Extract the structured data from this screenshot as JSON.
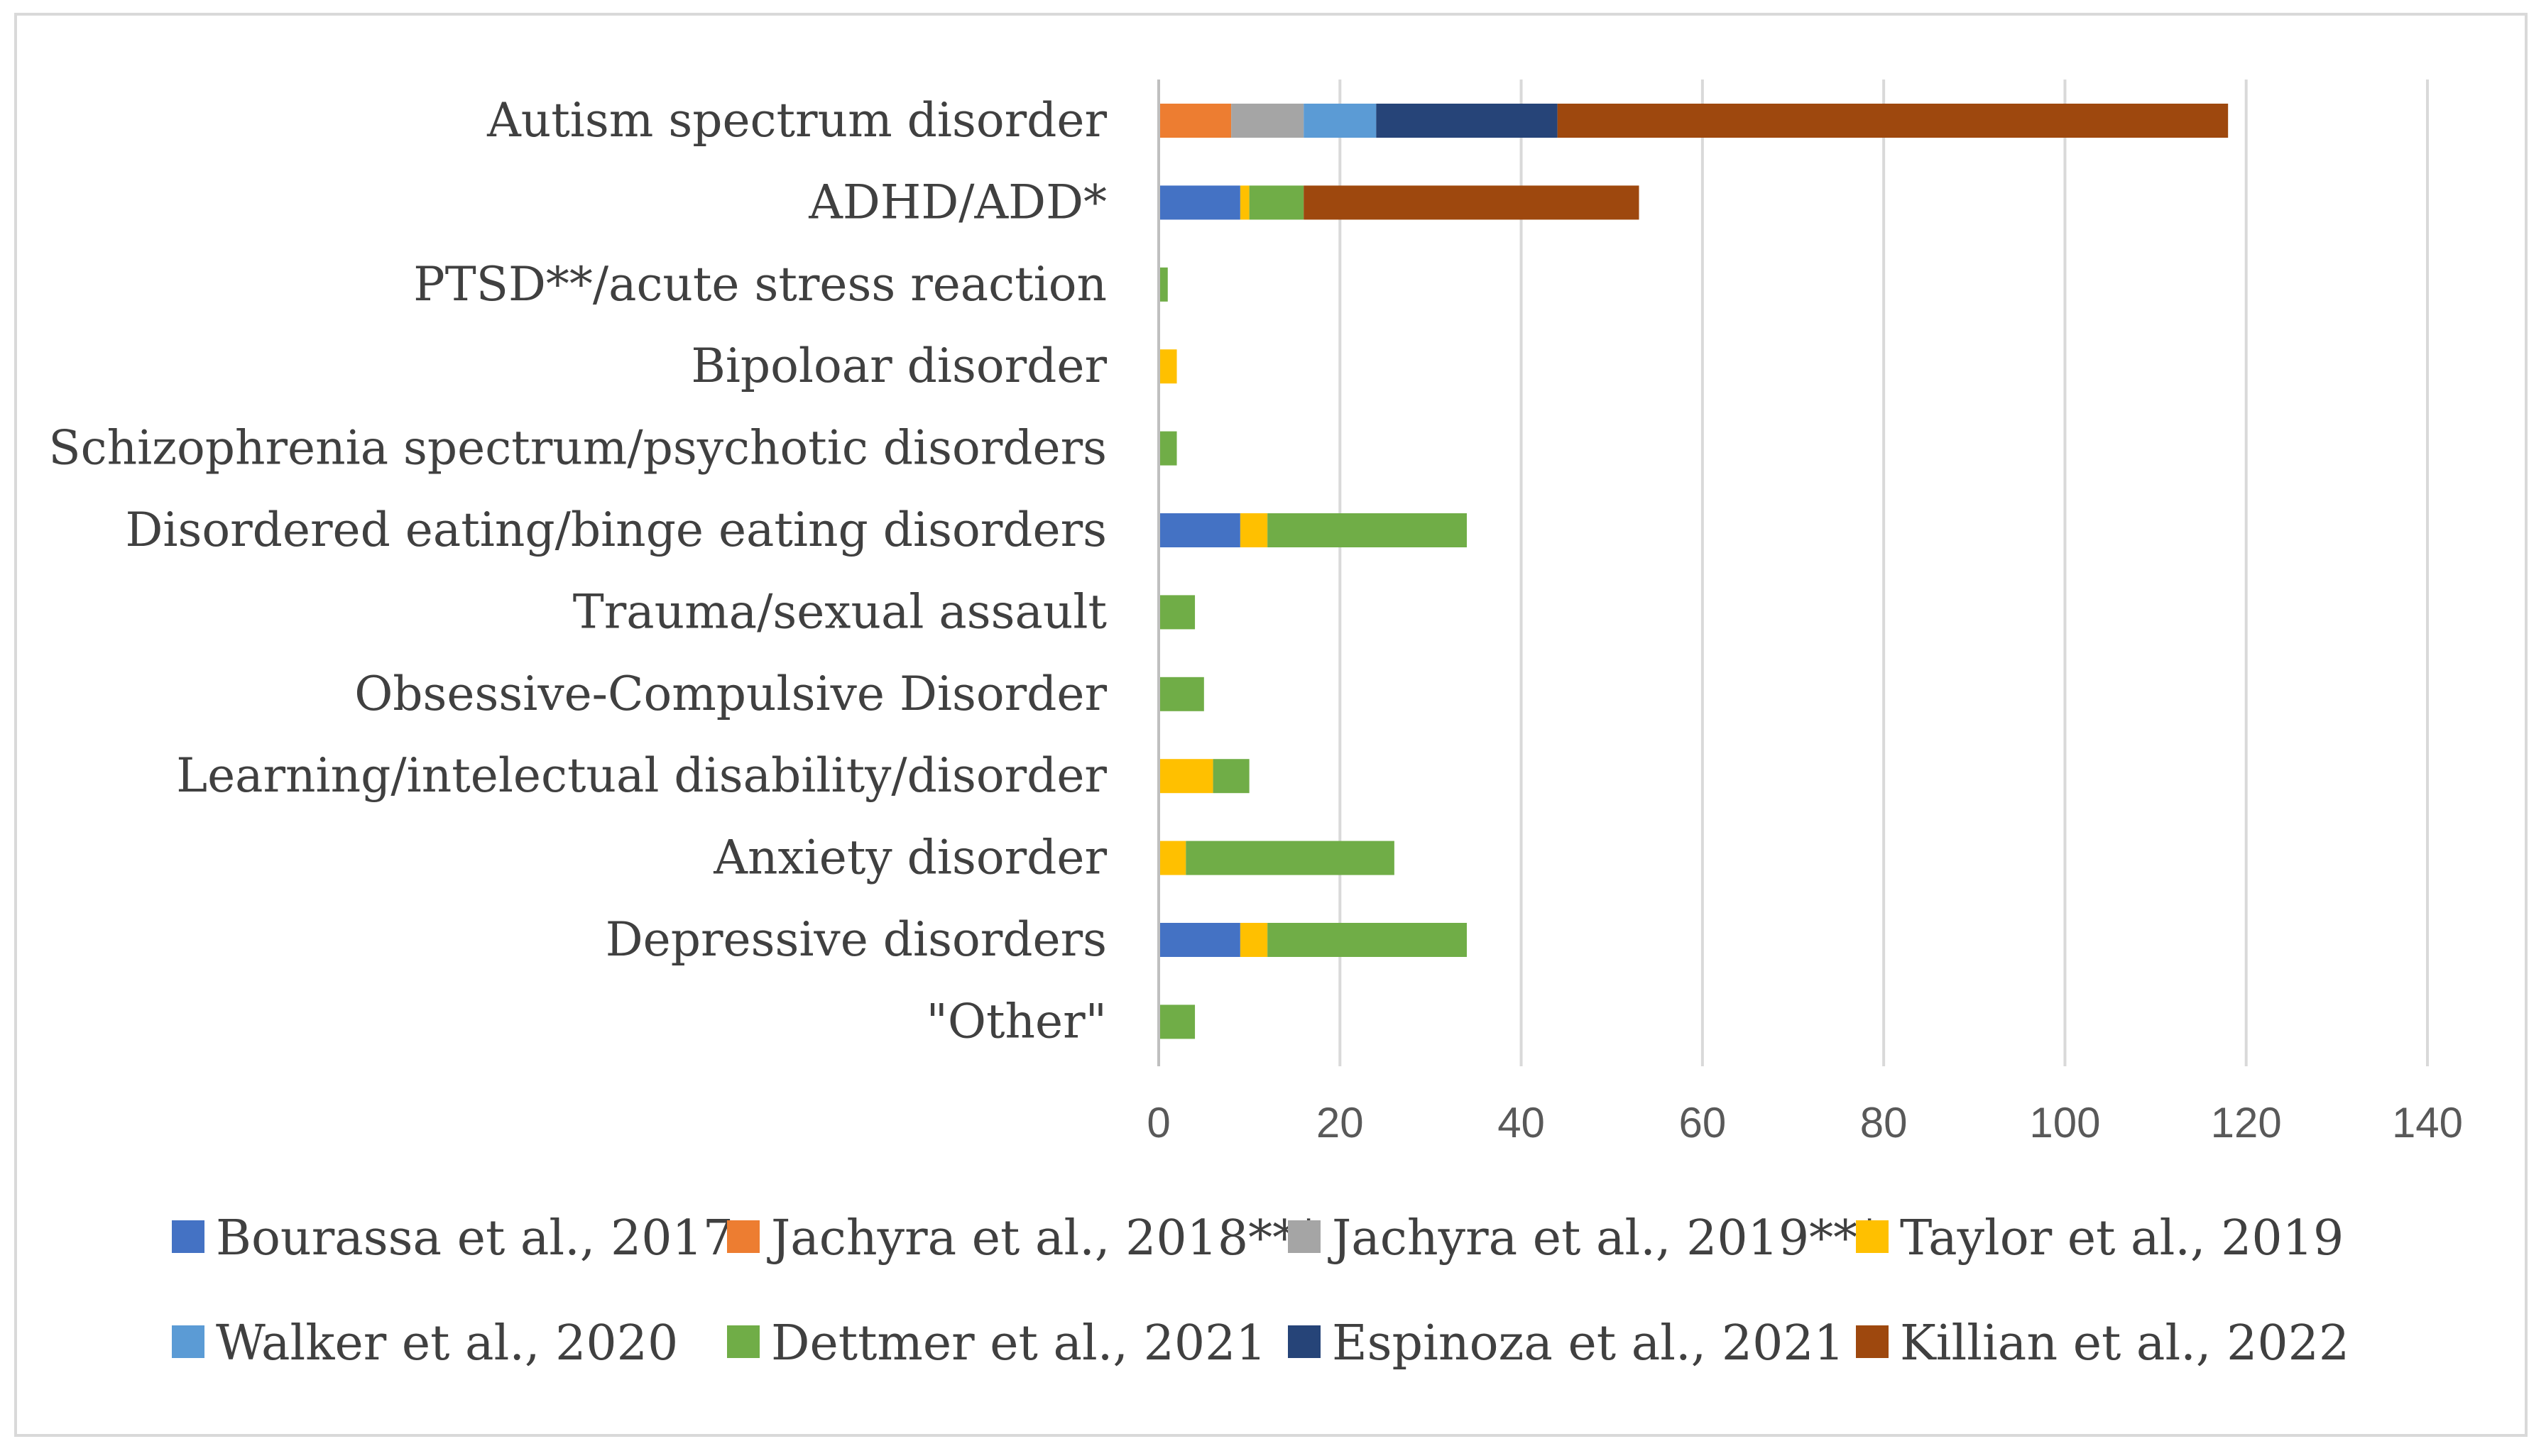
{
  "chart_data": {
    "type": "bar",
    "orientation": "horizontal",
    "stacked": true,
    "title": "",
    "xlabel": "",
    "ylabel": "",
    "xlim": [
      0,
      140
    ],
    "xticks": [
      0,
      20,
      40,
      60,
      80,
      100,
      120,
      140
    ],
    "grid": true,
    "legend_position": "bottom",
    "categories": [
      "Autism spectrum disorder",
      "ADHD/ADD*",
      "PTSD**/acute stress reaction",
      "Bipoloar disorder",
      "Schizophrenia spectrum/psychotic disorders",
      "Disordered eating/binge eating disorders",
      "Trauma/sexual assault ",
      "Obsessive-Compulsive Disorder",
      "Learning/intelectual disability/disorder",
      "Anxiety disorder",
      "Depressive disorders",
      "\"Other\""
    ],
    "series": [
      {
        "name": "Bourassa et al., 2017",
        "color": "#4472C4",
        "values": [
          0,
          9,
          0,
          0,
          0,
          9,
          0,
          0,
          0,
          0,
          9,
          0
        ]
      },
      {
        "name": "Jachyra et al., 2018***",
        "color": "#ED7D31",
        "values": [
          8,
          0,
          0,
          0,
          0,
          0,
          0,
          0,
          0,
          0,
          0,
          0
        ]
      },
      {
        "name": "Jachyra et al., 2019***",
        "color": "#A5A5A5",
        "values": [
          8,
          0,
          0,
          0,
          0,
          0,
          0,
          0,
          0,
          0,
          0,
          0
        ]
      },
      {
        "name": "Taylor et al., 2019",
        "color": "#FFC000",
        "values": [
          0,
          1,
          0,
          2,
          0,
          3,
          0,
          0,
          6,
          3,
          3,
          0
        ]
      },
      {
        "name": "Walker et al., 2020",
        "color": "#5B9BD5",
        "values": [
          8,
          0,
          0,
          0,
          0,
          0,
          0,
          0,
          0,
          0,
          0,
          0
        ]
      },
      {
        "name": "Dettmer et al., 2021",
        "color": "#70AD47",
        "values": [
          0,
          6,
          1,
          0,
          2,
          22,
          4,
          5,
          4,
          23,
          22,
          4
        ]
      },
      {
        "name": "Espinoza et al., 2021",
        "color": "#264478",
        "values": [
          20,
          0,
          0,
          0,
          0,
          0,
          0,
          0,
          0,
          0,
          0,
          0
        ]
      },
      {
        "name": "Killian et al., 2022",
        "color": "#9E480E",
        "values": [
          74,
          37,
          0,
          0,
          0,
          0,
          0,
          0,
          0,
          0,
          0,
          0
        ]
      }
    ],
    "colors": {
      "grid": "#d9d9d9",
      "axis": "#bfbfbf",
      "frame": "#d9d9d9"
    }
  }
}
